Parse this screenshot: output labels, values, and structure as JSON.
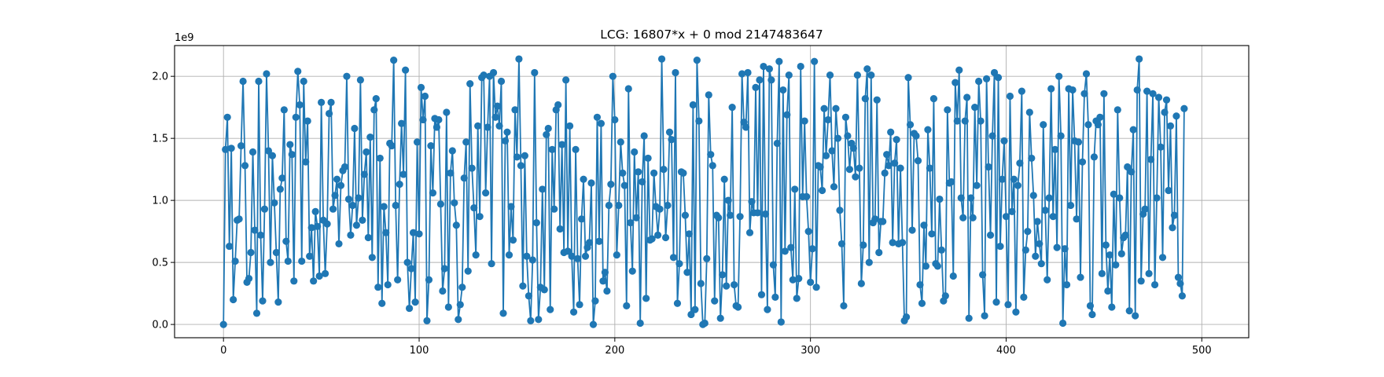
{
  "chart_data": {
    "type": "line",
    "title": "LCG: 16807*x + 0 mod 2147483647",
    "xlabel": "",
    "ylabel": "",
    "y_offset_label": "1e9",
    "xlim": [
      -25,
      524
    ],
    "ylim": [
      -0.107,
      2.248
    ],
    "x_ticks": [
      0,
      100,
      200,
      300,
      400,
      500
    ],
    "x_tick_labels": [
      "0",
      "100",
      "200",
      "300",
      "400",
      "500"
    ],
    "y_ticks": [
      0.0,
      0.5,
      1.0,
      1.5,
      2.0
    ],
    "y_tick_labels": [
      "0.0",
      "0.5",
      "1.0",
      "1.5",
      "2.0"
    ],
    "grid": true,
    "marker": "circle",
    "color": "#1f77b4",
    "y_scale_note": "values in units of 1e9",
    "series": [
      {
        "x_start": 0,
        "x_step": 1,
        "values": [
          0.0,
          1.41,
          1.67,
          0.63,
          1.42,
          0.2,
          0.51,
          0.84,
          0.85,
          1.44,
          1.96,
          1.28,
          0.34,
          0.37,
          0.58,
          1.39,
          0.76,
          0.09,
          1.96,
          0.72,
          0.19,
          0.93,
          2.02,
          1.4,
          0.5,
          1.36,
          0.98,
          0.58,
          0.18,
          1.09,
          1.18,
          1.73,
          0.67,
          0.51,
          1.45,
          1.37,
          0.35,
          1.67,
          2.04,
          1.77,
          0.51,
          1.96,
          1.31,
          1.64,
          0.55,
          0.78,
          0.35,
          0.91,
          0.79,
          0.39,
          1.79,
          0.84,
          0.41,
          0.81,
          1.7,
          1.79,
          0.93,
          1.04,
          1.17,
          0.65,
          1.12,
          1.24,
          1.27,
          2.0,
          1.01,
          0.72,
          0.96,
          1.58,
          0.8,
          1.02,
          1.97,
          0.84,
          1.21,
          1.39,
          0.7,
          1.51,
          0.54,
          1.73,
          1.82,
          0.3,
          1.34,
          0.17,
          0.95,
          0.74,
          0.32,
          1.46,
          1.44,
          2.13,
          0.96,
          0.36,
          1.13,
          1.62,
          1.21,
          2.05,
          0.5,
          0.13,
          0.45,
          0.74,
          0.18,
          1.47,
          0.73,
          1.91,
          1.65,
          1.84,
          0.03,
          0.36,
          1.44,
          1.06,
          1.66,
          1.59,
          1.65,
          0.97,
          0.27,
          0.45,
          1.71,
          0.14,
          1.22,
          1.4,
          0.98,
          0.8,
          0.04,
          0.16,
          0.3,
          1.18,
          1.47,
          0.43,
          1.94,
          1.26,
          0.94,
          0.56,
          1.6,
          0.87,
          1.99,
          2.01,
          1.06,
          1.59,
          2.0,
          0.49,
          2.03,
          1.67,
          1.76,
          1.6,
          1.96,
          0.09,
          1.48,
          1.55,
          0.56,
          0.95,
          0.68,
          1.73,
          1.35,
          2.14,
          1.28,
          0.31,
          1.36,
          0.55,
          0.23,
          0.03,
          0.52,
          2.03,
          0.82,
          0.04,
          0.3,
          1.09,
          0.28,
          1.53,
          1.58,
          0.12,
          1.41,
          0.93,
          1.73,
          1.77,
          0.77,
          1.45,
          0.58,
          1.97,
          0.59,
          1.6,
          0.55,
          0.1,
          1.41,
          0.53,
          0.16,
          0.85,
          1.17,
          0.55,
          0.62,
          0.66,
          1.14,
          0.0,
          0.19,
          1.67,
          0.67,
          1.62,
          0.35,
          0.42,
          0.27,
          0.96,
          1.13,
          2.0,
          1.65,
          0.56,
          0.96,
          1.47,
          1.22,
          1.12,
          0.15,
          1.9,
          0.82,
          0.43,
          1.39,
          0.86,
          1.23,
          0.01,
          1.15,
          1.52,
          0.21,
          1.34,
          0.68,
          0.69,
          1.22,
          0.95,
          0.72,
          0.93,
          2.14,
          1.25,
          0.7,
          0.96,
          1.55,
          1.49,
          0.54,
          2.03,
          0.17,
          0.49,
          1.23,
          1.22,
          0.88,
          0.42,
          0.73,
          0.08,
          1.77,
          0.12,
          2.13,
          1.64,
          0.33,
          0.0,
          0.01,
          0.53,
          1.85,
          1.37,
          1.28,
          0.19,
          0.88,
          0.86,
          0.05,
          0.4,
          1.17,
          0.31,
          1.0,
          0.88,
          1.75,
          0.32,
          0.15,
          0.14,
          0.87,
          2.02,
          1.63,
          1.59,
          2.03,
          0.74,
          0.99,
          0.9,
          1.91,
          0.9,
          1.97,
          0.24,
          2.08,
          0.89,
          0.12,
          2.06,
          1.97,
          0.48,
          0.22,
          1.46,
          2.12,
          0.02,
          1.89,
          0.59,
          1.69,
          2.01,
          0.62,
          0.36,
          1.09,
          0.21,
          0.37,
          2.08,
          1.03,
          1.64,
          1.03,
          0.75,
          0.34,
          0.61,
          2.12,
          0.3,
          1.28,
          1.27,
          1.08,
          1.74,
          1.36,
          1.65,
          2.01,
          1.4,
          1.11,
          1.74,
          1.5,
          0.92,
          0.65,
          0.15,
          1.67,
          1.52,
          1.25,
          1.46,
          1.42,
          1.19,
          2.01,
          1.26,
          0.33,
          0.64,
          1.82,
          2.06,
          0.5,
          2.01,
          0.82,
          0.85,
          1.81,
          0.58,
          0.83,
          0.83,
          1.22,
          1.37,
          1.28,
          1.55,
          0.66,
          1.3,
          1.49,
          0.65,
          1.26,
          0.66,
          0.03,
          0.06,
          1.99,
          1.61,
          0.76,
          1.54,
          1.52,
          1.32,
          0.32,
          0.17,
          0.8,
          0.47,
          1.57,
          1.26,
          0.73,
          1.82,
          0.49,
          0.47,
          1.01,
          0.6,
          0.19,
          0.23,
          1.73,
          1.14,
          1.15,
          0.39,
          1.95,
          1.64,
          2.05,
          1.02,
          0.86,
          1.64,
          1.83,
          0.05,
          1.02,
          0.86,
          1.75,
          1.12,
          1.96,
          1.64,
          0.4,
          0.07,
          1.98,
          1.27,
          0.72,
          1.52,
          2.03,
          0.18,
          1.99,
          0.63,
          1.17,
          1.48,
          0.87,
          0.16,
          1.84,
          0.91,
          1.17,
          0.1,
          1.12,
          1.3,
          1.88,
          0.22,
          0.6,
          0.75,
          1.71,
          1.34,
          1.04,
          0.55,
          0.83,
          0.65,
          0.49,
          1.61,
          0.92,
          0.36,
          1.02,
          1.9,
          0.87,
          1.41,
          0.62,
          2.0,
          1.52,
          0.01,
          0.61,
          0.32,
          1.9,
          0.96,
          1.89,
          1.48,
          0.85,
          1.47,
          0.38,
          1.31,
          1.86,
          2.02,
          1.61,
          0.15,
          0.08,
          1.35,
          1.64,
          1.61,
          1.67,
          0.41,
          1.86,
          0.64,
          0.27,
          0.56,
          0.14,
          1.05,
          0.48,
          1.73,
          1.02,
          0.57,
          0.7,
          0.72,
          1.27,
          0.11,
          1.23,
          1.57,
          0.07,
          1.89,
          2.14,
          0.35,
          0.89,
          0.93,
          1.88,
          0.41,
          1.33,
          1.86,
          0.32,
          1.02,
          1.83,
          1.43,
          0.54,
          1.71,
          1.81,
          1.08,
          1.6,
          0.78,
          0.88,
          1.68,
          0.38,
          0.33,
          0.23,
          1.74
        ]
      }
    ]
  }
}
